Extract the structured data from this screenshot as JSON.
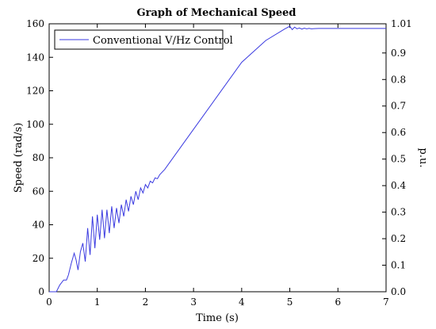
{
  "chart_data": {
    "type": "line",
    "title": "Graph of Mechanical Speed",
    "xlabel": "Time (s)",
    "ylabel": "Speed (rad/s)",
    "ylabel_right": "p.u.",
    "xlim": [
      0,
      7
    ],
    "ylim": [
      0,
      160
    ],
    "ylim_right": [
      0,
      1.01
    ],
    "xticks": [
      "0",
      "1",
      "2",
      "3",
      "4",
      "5",
      "6",
      "7"
    ],
    "yticks": [
      "0",
      "20",
      "40",
      "60",
      "80",
      "100",
      "120",
      "140",
      "160"
    ],
    "yticks_right": [
      "0.0",
      "0.1",
      "0.2",
      "0.3",
      "0.4",
      "0.5",
      "0.6",
      "0.7",
      "0.8",
      "0.9",
      "1.01"
    ],
    "grid": false,
    "legend_position": "top-left",
    "series": [
      {
        "name": "Conventional V/Hz Control",
        "color": "#3a3ae0",
        "x": [
          0.0,
          0.15,
          0.22,
          0.3,
          0.36,
          0.4,
          0.46,
          0.52,
          0.56,
          0.6,
          0.65,
          0.7,
          0.75,
          0.8,
          0.85,
          0.9,
          0.95,
          1.0,
          1.05,
          1.1,
          1.15,
          1.2,
          1.25,
          1.3,
          1.35,
          1.4,
          1.45,
          1.5,
          1.55,
          1.6,
          1.65,
          1.7,
          1.75,
          1.8,
          1.85,
          1.9,
          1.95,
          2.0,
          2.05,
          2.1,
          2.15,
          2.2,
          2.25,
          2.3,
          2.4,
          2.5,
          3.0,
          3.5,
          4.0,
          4.5,
          4.9,
          5.0,
          5.05,
          5.1,
          5.15,
          5.2,
          5.25,
          5.3,
          5.35,
          5.4,
          5.45,
          5.5,
          5.6,
          6.0,
          7.0
        ],
        "y": [
          0.0,
          0.0,
          4.0,
          7.0,
          7.0,
          10.0,
          17.0,
          23.0,
          19.0,
          13.0,
          24.0,
          29.0,
          18.0,
          38.0,
          22.0,
          45.0,
          26.0,
          46.0,
          31.0,
          49.0,
          32.0,
          49.0,
          35.0,
          51.0,
          38.0,
          50.0,
          41.0,
          52.0,
          45.0,
          55.0,
          48.0,
          57.0,
          52.0,
          60.0,
          55.0,
          62.0,
          59.0,
          64.0,
          62.0,
          66.0,
          65.0,
          68.0,
          67.5,
          70.0,
          73.0,
          77.0,
          97.0,
          117.0,
          137.0,
          150.0,
          157.0,
          158.5,
          156.5,
          158.0,
          157.0,
          157.5,
          156.8,
          157.4,
          157.0,
          157.3,
          157.0,
          157.1,
          157.2,
          157.2,
          157.2
        ]
      }
    ]
  }
}
